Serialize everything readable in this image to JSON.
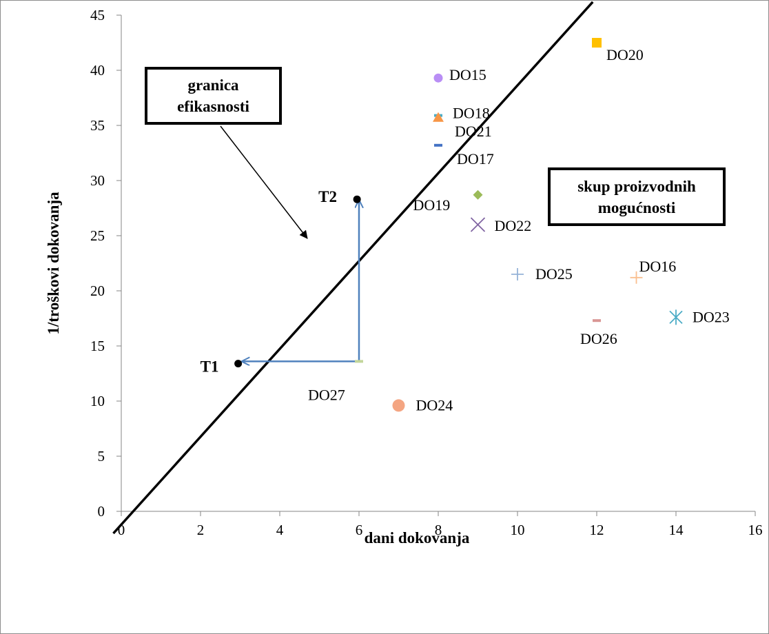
{
  "chart_data": {
    "type": "scatter",
    "xlabel": "dani dokovanja",
    "ylabel": "1/troškovi dokovanja",
    "xlim": [
      0,
      16
    ],
    "ylim": [
      0,
      45
    ],
    "x_ticks": [
      "0",
      "2",
      "4",
      "6",
      "8",
      "10",
      "12",
      "14",
      "16"
    ],
    "y_ticks": [
      "0",
      "5",
      "10",
      "15",
      "20",
      "25",
      "30",
      "35",
      "40",
      "45"
    ],
    "grid": false,
    "points": [
      {
        "label": "DO15",
        "x": 8,
        "y": 39.3,
        "marker": "circle",
        "color": "#b98ef5"
      },
      {
        "label": "DO20",
        "x": 12,
        "y": 42.5,
        "marker": "square",
        "color": "#ffc000"
      },
      {
        "label": "DO18",
        "x": 8,
        "y": 35.9,
        "marker": "dash",
        "color": "#4bacc6"
      },
      {
        "label": "DO21",
        "x": 8,
        "y": 35.7,
        "marker": "triangle",
        "color": "#f79646"
      },
      {
        "label": "DO17",
        "x": 8,
        "y": 33.2,
        "marker": "dash",
        "color": "#4472c4"
      },
      {
        "label": "DO19",
        "x": 9,
        "y": 28.7,
        "marker": "diamond",
        "color": "#9bbb59"
      },
      {
        "label": "DO22",
        "x": 9,
        "y": 26,
        "marker": "x",
        "color": "#8064a2"
      },
      {
        "label": "DO25",
        "x": 10,
        "y": 21.5,
        "marker": "plus",
        "color": "#95b3d7"
      },
      {
        "label": "DO16",
        "x": 13,
        "y": 21.2,
        "marker": "plus",
        "color": "#fabf8f"
      },
      {
        "label": "DO26",
        "x": 12,
        "y": 17.3,
        "marker": "dash",
        "color": "#d99694"
      },
      {
        "label": "DO23",
        "x": 14,
        "y": 17.6,
        "marker": "asterisk",
        "color": "#4bacc6"
      },
      {
        "label": "DO27",
        "x": 6,
        "y": 13.6,
        "marker": "dash",
        "color": "#c3d69b"
      },
      {
        "label": "DO24",
        "x": 7,
        "y": 9.6,
        "marker": "circle",
        "color": "#f4a582"
      }
    ],
    "frontier": {
      "from": {
        "x": -0.2,
        "y": -2
      },
      "to": {
        "x": 11.9,
        "y": 46.2
      },
      "color": "#000000"
    },
    "special_points": [
      {
        "label": "T1",
        "x": 2.95,
        "y": 13.4
      },
      {
        "label": "T2",
        "x": 5.95,
        "y": 28.3
      }
    ],
    "arrows": [
      {
        "from": {
          "x": 6,
          "y": 13.6
        },
        "to": {
          "x": 3.05,
          "y": 13.6
        },
        "color": "#4f81bd"
      },
      {
        "from": {
          "x": 6,
          "y": 13.6
        },
        "to": {
          "x": 6,
          "y": 28.2
        },
        "color": "#4f81bd"
      }
    ],
    "annotations": {
      "frontier_box": "granica efikasnosti",
      "frontier_box_lines": [
        "granica",
        "efikasnosti"
      ],
      "ppf_box": "skup proizvodnih mogućnosti",
      "ppf_box_lines": [
        "skup proizvodnih",
        "mogućnosti"
      ]
    }
  }
}
